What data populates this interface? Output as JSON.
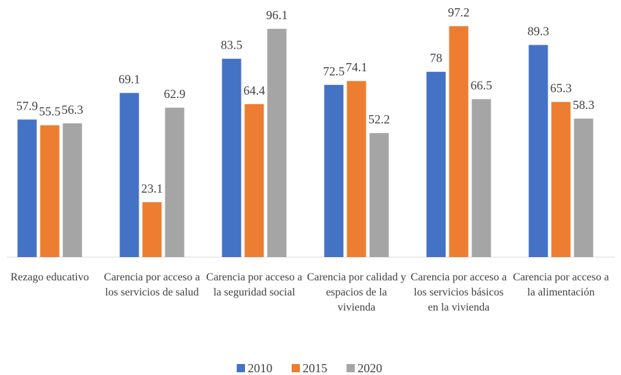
{
  "chart_data": {
    "type": "bar",
    "categories": [
      "Rezago educativo",
      "Carencia por acceso a los servicios de salud",
      "Carencia por acceso a la seguridad social",
      "Carencia por calidad y espacios de la vivienda",
      "Carencia por acceso a los servicios básicos en la vivienda",
      "Carencia por acceso a la alimentación"
    ],
    "series": [
      {
        "name": "2010",
        "color": "#4472c4",
        "values": [
          57.9,
          69.1,
          83.5,
          72.5,
          78,
          89.3
        ]
      },
      {
        "name": "2015",
        "color": "#ed7d31",
        "values": [
          55.5,
          23.1,
          64.4,
          74.1,
          97.2,
          65.3
        ]
      },
      {
        "name": "2020",
        "color": "#a5a5a5",
        "values": [
          56.3,
          62.9,
          96.1,
          52.2,
          66.5,
          58.3
        ]
      }
    ],
    "ylim": [
      0,
      100
    ],
    "legend": "bottom"
  }
}
